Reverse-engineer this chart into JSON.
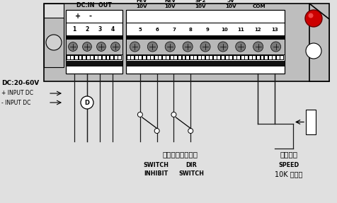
{
  "bg_color": "#e0e0e0",
  "board_bg": "#c8c8c8",
  "terminal_white": "#ffffff",
  "text_color": "#000000",
  "title_dc_in_out": "DC:IN  OUT",
  "header_labels": [
    "FEV",
    "REV",
    "SP2",
    "5V"
  ],
  "header_volts": [
    "10V",
    "10V",
    "10V",
    "10V",
    "COM"
  ],
  "terminal_nums_left": [
    "1",
    "2",
    "3",
    "4"
  ],
  "terminal_nums_right": [
    "5",
    "6",
    "7",
    "8",
    "9",
    "10",
    "11",
    "12",
    "13"
  ],
  "left_text0": "DC:20-60V",
  "left_text1": "+ INPUT DC",
  "left_text2": "- INPUT DC",
  "bottom_chinese": "使能开关换向开关",
  "bottom_en_sw": "SWITCH",
  "bottom_en_inh": "INHIBIT",
  "bottom_en_dir": "DIR",
  "bottom_en_sw2": "SWITCH",
  "right_chinese": "速度调整",
  "right_en_speed": "SPEED",
  "right_en_10k": "10K 电位器",
  "red_color": "#cc0000",
  "wire_color": "#1a1a1a",
  "screw_color": "#909090",
  "black_bar": "#1a1a1a"
}
